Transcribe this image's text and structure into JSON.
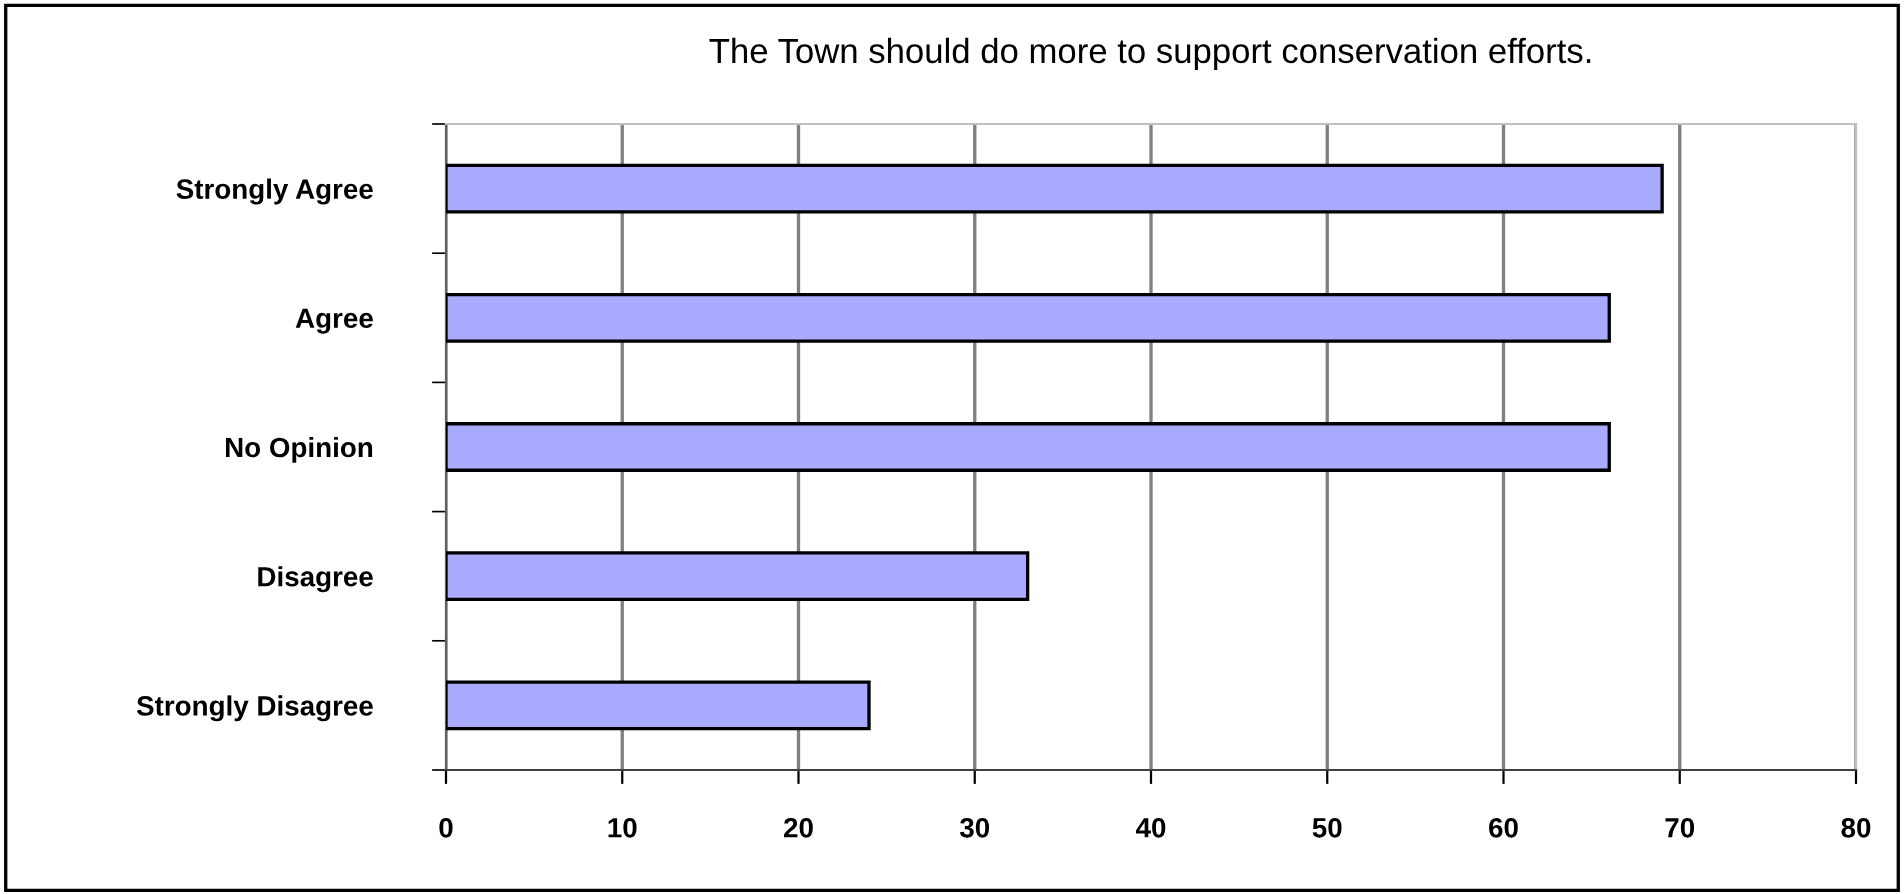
{
  "chart_data": {
    "type": "bar",
    "orientation": "horizontal",
    "title": "The Town should do more to support conservation efforts.",
    "categories": [
      "Strongly Agree",
      "Agree",
      "No Opinion",
      "Disagree",
      "Strongly Disagree"
    ],
    "values": [
      69,
      66,
      66,
      33,
      24
    ],
    "color": "#aaaaff",
    "xlim": [
      0,
      80
    ],
    "xticks": [
      0,
      10,
      20,
      30,
      40,
      50,
      60,
      70,
      80
    ],
    "grid": "x",
    "legend": false
  }
}
